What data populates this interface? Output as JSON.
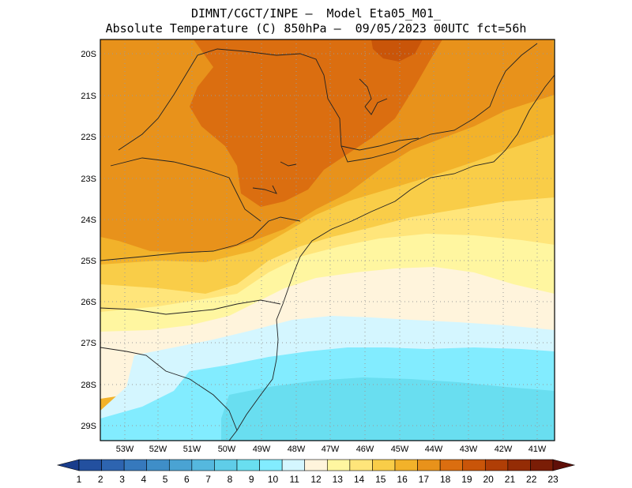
{
  "title_line1": "DIMNT/CGCT/INPE –  Model Eta05_M01_",
  "title_line2": "Absolute Temperature (C) 850hPa –  09/05/2023 00UTC fct=56h",
  "lat_labels": [
    "20S",
    "21S",
    "22S",
    "23S",
    "24S",
    "25S",
    "26S",
    "27S",
    "28S",
    "29S"
  ],
  "lon_labels": [
    "53W",
    "52W",
    "51W",
    "50W",
    "49W",
    "48W",
    "47W",
    "46W",
    "45W",
    "44W",
    "43W",
    "42W",
    "41W"
  ],
  "colorbar": {
    "labels": [
      "1",
      "2",
      "3",
      "4",
      "5",
      "6",
      "7",
      "8",
      "9",
      "10",
      "11",
      "12",
      "13",
      "14",
      "15",
      "16",
      "17",
      "18",
      "19",
      "20",
      "21",
      "22",
      "23"
    ],
    "colors": [
      "#1a3d8c",
      "#23509f",
      "#2d64b0",
      "#3679bd",
      "#3f8ec8",
      "#4aa3d3",
      "#55b8de",
      "#5fcde8",
      "#69def0",
      "#82ecff",
      "#d4f6ff",
      "#fff4dc",
      "#fff6a0",
      "#ffe57a",
      "#f9cd48",
      "#f2b22a",
      "#e8921b",
      "#db6e10",
      "#c95509",
      "#b03e06",
      "#942c05",
      "#7a1d06",
      "#5f0f08"
    ]
  },
  "map_data": {
    "type": "filled-contour-map",
    "lon_range": [
      "53.6W",
      "40.6W"
    ],
    "lat_range": [
      "29.4S",
      "19.7S"
    ],
    "temperature_range_c": [
      9,
      19
    ],
    "grid": "dotted"
  }
}
